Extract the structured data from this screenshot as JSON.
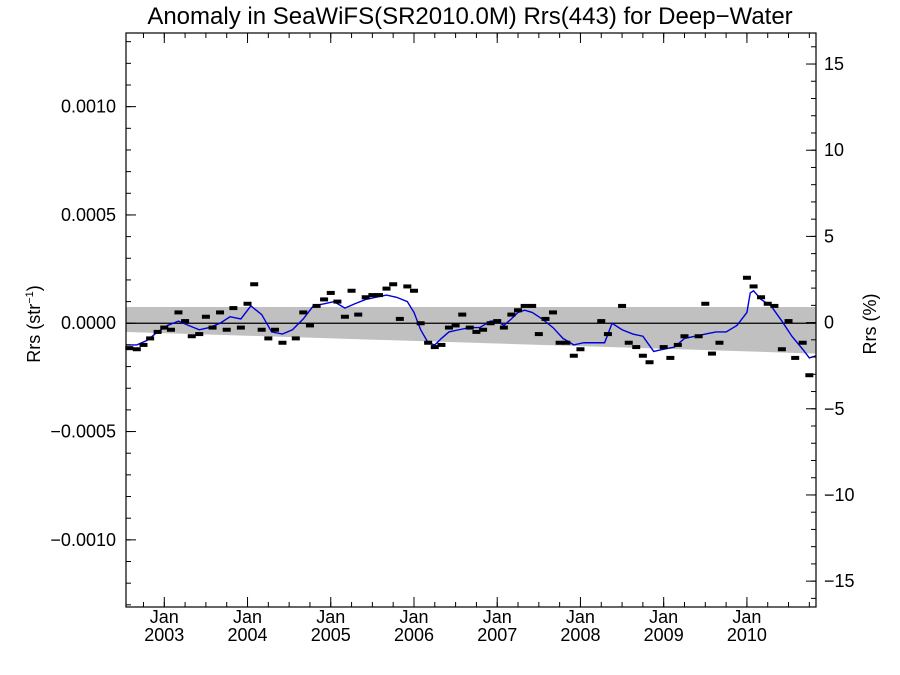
{
  "chart_data": {
    "type": "line",
    "title": "Anomaly in SeaWiFS(SR2010.0M) Rrs(443) for Deep−Water",
    "ylabel": "Rrs (str",
    "ylabel_sup": "−1",
    "ylabel_close": ")",
    "y2label": "Rrs (%)",
    "xlim": [
      2002.54,
      2010.83
    ],
    "ylim": [
      -0.00131,
      0.00134
    ],
    "y2lim": [
      -16.5,
      16.8
    ],
    "y_ticks": [
      0.001,
      0.0005,
      0.0,
      -0.0005,
      -0.001
    ],
    "y_tick_labels": [
      "0.0010",
      "0.0005",
      "0.0000",
      "−0.0005",
      "−0.0010"
    ],
    "y2_ticks": [
      15,
      10,
      5,
      0,
      -5,
      -10,
      -15
    ],
    "y2_tick_labels": [
      "15",
      "10",
      "5",
      "0",
      "−5",
      "−10",
      "−15"
    ],
    "x_ticks": [
      2003.0,
      2004.0,
      2005.0,
      2006.0,
      2007.0,
      2008.0,
      2009.0,
      2010.0
    ],
    "x_tick_month": "Jan",
    "x_tick_years": [
      "2003",
      "2004",
      "2005",
      "2006",
      "2007",
      "2008",
      "2009",
      "2010"
    ],
    "grid": false,
    "zero_line": 0.0,
    "band": {
      "color": "#c0c0c0",
      "upper": [
        [
          2002.54,
          7.5e-05
        ],
        [
          2010.83,
          7.5e-05
        ]
      ],
      "lower": [
        [
          2002.54,
          -4e-05
        ],
        [
          2010.83,
          -0.00014
        ]
      ]
    },
    "series": [
      {
        "kind": "monthly-markers",
        "color": "#000000",
        "points": [
          [
            2002.58,
            -0.000115
          ],
          [
            2002.67,
            -0.00012
          ],
          [
            2002.75,
            -0.0001
          ],
          [
            2002.83,
            -7e-05
          ],
          [
            2002.92,
            -4e-05
          ],
          [
            2003.0,
            -2e-05
          ],
          [
            2003.08,
            -3e-05
          ],
          [
            2003.17,
            5e-05
          ],
          [
            2003.25,
            1e-05
          ],
          [
            2003.33,
            -6e-05
          ],
          [
            2003.42,
            -5e-05
          ],
          [
            2003.5,
            3e-05
          ],
          [
            2003.58,
            -2e-05
          ],
          [
            2003.67,
            5e-05
          ],
          [
            2003.75,
            -3e-05
          ],
          [
            2003.83,
            7e-05
          ],
          [
            2003.92,
            -2e-05
          ],
          [
            2004.0,
            9e-05
          ],
          [
            2004.08,
            0.00018
          ],
          [
            2004.17,
            -3e-05
          ],
          [
            2004.25,
            -7e-05
          ],
          [
            2004.33,
            -3e-05
          ],
          [
            2004.42,
            -9e-05
          ],
          [
            2004.58,
            -7e-05
          ],
          [
            2004.67,
            5e-05
          ],
          [
            2004.75,
            -1e-05
          ],
          [
            2004.83,
            8e-05
          ],
          [
            2004.92,
            0.00011
          ],
          [
            2005.0,
            0.00014
          ],
          [
            2005.08,
            0.0001
          ],
          [
            2005.17,
            3e-05
          ],
          [
            2005.25,
            0.00015
          ],
          [
            2005.33,
            4e-05
          ],
          [
            2005.42,
            0.00012
          ],
          [
            2005.5,
            0.00013
          ],
          [
            2005.58,
            0.00013
          ],
          [
            2005.67,
            0.00016
          ],
          [
            2005.75,
            0.00018
          ],
          [
            2005.83,
            2e-05
          ],
          [
            2005.92,
            0.00017
          ],
          [
            2006.0,
            0.00015
          ],
          [
            2006.08,
            0.0
          ],
          [
            2006.17,
            -9e-05
          ],
          [
            2006.25,
            -0.00011
          ],
          [
            2006.33,
            -0.0001
          ],
          [
            2006.42,
            -2e-05
          ],
          [
            2006.5,
            -1e-05
          ],
          [
            2006.58,
            4e-05
          ],
          [
            2006.67,
            -2e-05
          ],
          [
            2006.75,
            -4e-05
          ],
          [
            2006.83,
            -3e-05
          ],
          [
            2006.92,
            0.0
          ],
          [
            2007.0,
            1e-05
          ],
          [
            2007.08,
            -2e-05
          ],
          [
            2007.17,
            4e-05
          ],
          [
            2007.25,
            6e-05
          ],
          [
            2007.33,
            8e-05
          ],
          [
            2007.42,
            8e-05
          ],
          [
            2007.5,
            -5e-05
          ],
          [
            2007.58,
            2e-05
          ],
          [
            2007.67,
            5e-05
          ],
          [
            2007.75,
            -9e-05
          ],
          [
            2007.83,
            -9e-05
          ],
          [
            2007.92,
            -0.00015
          ],
          [
            2008.0,
            -0.00012
          ],
          [
            2008.25,
            1e-05
          ],
          [
            2008.33,
            -5e-05
          ],
          [
            2008.5,
            8e-05
          ],
          [
            2008.58,
            -9e-05
          ],
          [
            2008.67,
            -0.00011
          ],
          [
            2008.75,
            -0.00015
          ],
          [
            2008.83,
            -0.00018
          ],
          [
            2009.0,
            -0.00011
          ],
          [
            2009.08,
            -0.00016
          ],
          [
            2009.17,
            -0.0001
          ],
          [
            2009.25,
            -6e-05
          ],
          [
            2009.42,
            -6e-05
          ],
          [
            2009.5,
            9e-05
          ],
          [
            2009.58,
            -0.00014
          ],
          [
            2009.67,
            -9e-05
          ],
          [
            2010.0,
            0.00021
          ],
          [
            2010.08,
            0.00017
          ],
          [
            2010.17,
            0.00012
          ],
          [
            2010.25,
            9e-05
          ],
          [
            2010.33,
            8e-05
          ],
          [
            2010.42,
            -0.00012
          ],
          [
            2010.5,
            1e-05
          ],
          [
            2010.58,
            -0.00016
          ],
          [
            2010.67,
            -9e-05
          ],
          [
            2010.75,
            -0.00024
          ]
        ]
      },
      {
        "kind": "running-mean",
        "color": "#0000dd",
        "points": [
          [
            2002.54,
            -0.0001
          ],
          [
            2002.67,
            -0.0001
          ],
          [
            2002.79,
            -8e-05
          ],
          [
            2002.92,
            -4e-05
          ],
          [
            2003.04,
            -1e-05
          ],
          [
            2003.17,
            1e-05
          ],
          [
            2003.29,
            -1e-05
          ],
          [
            2003.42,
            -3e-05
          ],
          [
            2003.54,
            -2e-05
          ],
          [
            2003.67,
            0.0
          ],
          [
            2003.79,
            3e-05
          ],
          [
            2003.92,
            2e-05
          ],
          [
            2004.04,
            8e-05
          ],
          [
            2004.17,
            4e-05
          ],
          [
            2004.29,
            -4e-05
          ],
          [
            2004.42,
            -5e-05
          ],
          [
            2004.54,
            -3e-05
          ],
          [
            2004.67,
            2e-05
          ],
          [
            2004.79,
            8e-05
          ],
          [
            2004.92,
            9e-05
          ],
          [
            2005.04,
            0.0001
          ],
          [
            2005.17,
            7e-05
          ],
          [
            2005.29,
            9e-05
          ],
          [
            2005.42,
            0.00011
          ],
          [
            2005.54,
            0.00012
          ],
          [
            2005.67,
            0.00013
          ],
          [
            2005.79,
            0.00012
          ],
          [
            2005.92,
            0.0001
          ],
          [
            2006.0,
            5e-05
          ],
          [
            2006.08,
            -3e-05
          ],
          [
            2006.17,
            -9e-05
          ],
          [
            2006.25,
            -0.0001
          ],
          [
            2006.33,
            -7e-05
          ],
          [
            2006.42,
            -4e-05
          ],
          [
            2006.54,
            -3e-05
          ],
          [
            2006.67,
            -2e-05
          ],
          [
            2006.79,
            -2e-05
          ],
          [
            2006.92,
            1e-05
          ],
          [
            2007.0,
            1e-05
          ],
          [
            2007.08,
            -1e-05
          ],
          [
            2007.17,
            2e-05
          ],
          [
            2007.25,
            5e-05
          ],
          [
            2007.33,
            6e-05
          ],
          [
            2007.42,
            5e-05
          ],
          [
            2007.54,
            2e-05
          ],
          [
            2007.67,
            -2e-05
          ],
          [
            2007.79,
            -7e-05
          ],
          [
            2007.92,
            -0.0001
          ],
          [
            2008.04,
            -9e-05
          ],
          [
            2008.17,
            -9e-05
          ],
          [
            2008.29,
            -9e-05
          ],
          [
            2008.38,
            0.0
          ],
          [
            2008.5,
            -3e-05
          ],
          [
            2008.63,
            -5e-05
          ],
          [
            2008.75,
            -6e-05
          ],
          [
            2008.88,
            -0.00013
          ],
          [
            2009.0,
            -0.00012
          ],
          [
            2009.13,
            -0.00011
          ],
          [
            2009.25,
            -7e-05
          ],
          [
            2009.38,
            -6e-05
          ],
          [
            2009.5,
            -5e-05
          ],
          [
            2009.63,
            -4e-05
          ],
          [
            2009.75,
            -4e-05
          ],
          [
            2009.88,
            -1e-05
          ],
          [
            2010.0,
            5e-05
          ],
          [
            2010.04,
            0.00014
          ],
          [
            2010.08,
            0.00015
          ],
          [
            2010.17,
            0.00011
          ],
          [
            2010.29,
            8e-05
          ],
          [
            2010.42,
            1e-05
          ],
          [
            2010.54,
            -6e-05
          ],
          [
            2010.67,
            -0.00012
          ],
          [
            2010.75,
            -0.00016
          ],
          [
            2010.83,
            -0.00015
          ]
        ]
      }
    ]
  }
}
